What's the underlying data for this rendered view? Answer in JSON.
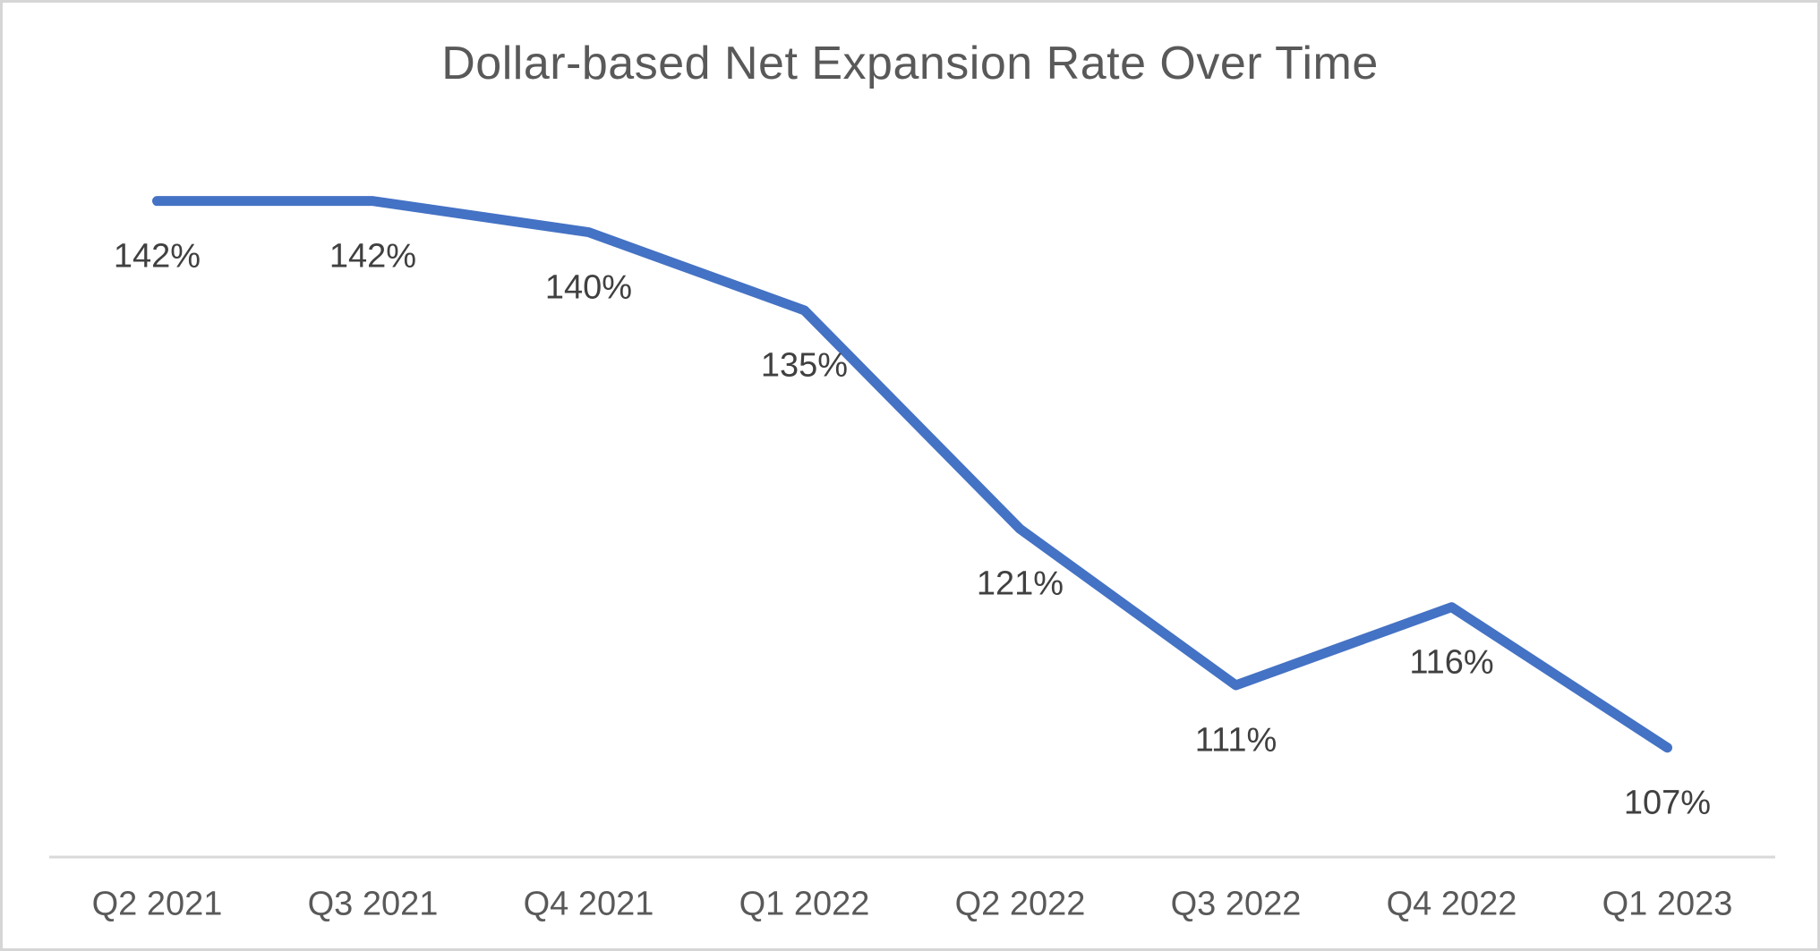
{
  "window": {
    "background": "#ffffff",
    "border_color": "#d6d6d6"
  },
  "chart_data": {
    "type": "line",
    "title": "Dollar-based Net Expansion Rate Over Time",
    "categories": [
      "Q2 2021",
      "Q3 2021",
      "Q4 2021",
      "Q1 2022",
      "Q2 2022",
      "Q3 2022",
      "Q4 2022",
      "Q1 2023"
    ],
    "series": [
      {
        "name": "Dollar-based Net Expansion Rate",
        "values": [
          142,
          142,
          140,
          135,
          121,
          111,
          116,
          107
        ]
      }
    ],
    "data_labels": [
      "142%",
      "142%",
      "140%",
      "135%",
      "121%",
      "111%",
      "116%",
      "107%"
    ],
    "data_label_position": "below",
    "xlabel": "",
    "ylabel": "",
    "ylim": [
      100,
      150
    ],
    "grid": false,
    "legend_position": "none",
    "y_axis_visible": false,
    "colors": {
      "line": "#4472c4",
      "data_label": "#404040",
      "axis_label": "#595959",
      "title": "#595959",
      "axis_line": "#d9d9d9"
    }
  }
}
